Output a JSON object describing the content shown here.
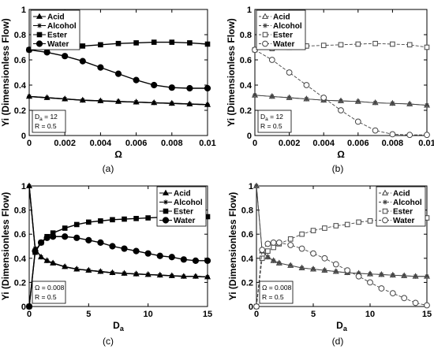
{
  "panels": [
    {
      "id": "a",
      "panel_label": "(a)",
      "chart_data": {
        "type": "line",
        "xlabel": "Ω",
        "ylabel": "Yi (Dimensionless Flow)",
        "xlim": [
          0,
          0.01
        ],
        "ylim": [
          0,
          1
        ],
        "xticks": [
          "0",
          "0.002",
          "0.004",
          "0.006",
          "0.008",
          "0.01"
        ],
        "yticks": [
          "0",
          "0.2",
          "0.4",
          "0.6",
          "0.8",
          "1"
        ],
        "legend_position": "top-left",
        "style": "filled",
        "annotation": {
          "line1": "Da = 12",
          "line2": "R = 0.5"
        },
        "series": [
          {
            "name": "Acid",
            "marker": "triangle",
            "color": "#000000",
            "x": [
              0,
              0.001,
              0.002,
              0.003,
              0.004,
              0.005,
              0.006,
              0.007,
              0.008,
              0.009,
              0.01
            ],
            "y": [
              0.31,
              0.3,
              0.29,
              0.28,
              0.275,
              0.27,
              0.265,
              0.26,
              0.255,
              0.25,
              0.245
            ]
          },
          {
            "name": "Alcohol",
            "marker": "star",
            "color": "#000000",
            "x": [
              0,
              0.001,
              0.002,
              0.003,
              0.004,
              0.005,
              0.006,
              0.007,
              0.008,
              0.009,
              0.01
            ],
            "y": [
              0.31,
              0.3,
              0.29,
              0.28,
              0.275,
              0.27,
              0.265,
              0.26,
              0.255,
              0.25,
              0.245
            ]
          },
          {
            "name": "Ester",
            "marker": "square",
            "color": "#000000",
            "x": [
              0,
              0.001,
              0.002,
              0.003,
              0.004,
              0.005,
              0.006,
              0.007,
              0.008,
              0.009,
              0.01
            ],
            "y": [
              0.68,
              0.69,
              0.7,
              0.71,
              0.72,
              0.73,
              0.735,
              0.74,
              0.74,
              0.735,
              0.725
            ]
          },
          {
            "name": "Water",
            "marker": "circle",
            "color": "#000000",
            "x": [
              0,
              0.001,
              0.002,
              0.003,
              0.004,
              0.005,
              0.006,
              0.007,
              0.008,
              0.009,
              0.01
            ],
            "y": [
              0.68,
              0.66,
              0.63,
              0.59,
              0.54,
              0.49,
              0.44,
              0.4,
              0.38,
              0.375,
              0.375
            ]
          }
        ]
      }
    },
    {
      "id": "b",
      "panel_label": "(b)",
      "chart_data": {
        "type": "line",
        "xlabel": "Ω",
        "ylabel": "Yi (Dimensionless Flow)",
        "xlim": [
          0,
          0.01
        ],
        "ylim": [
          0,
          1
        ],
        "xticks": [
          "0",
          "0.002",
          "0.004",
          "0.006",
          "0.008",
          "0.01"
        ],
        "yticks": [
          "0",
          "0.2",
          "0.4",
          "0.6",
          "0.8",
          "1"
        ],
        "legend_position": "top-left",
        "style": "open",
        "annotation": {
          "line1": "Da = 12",
          "line2": "R = 0.5"
        },
        "series": [
          {
            "name": "Acid",
            "marker": "triangle",
            "color": "#444444",
            "x": [
              0,
              0.001,
              0.002,
              0.003,
              0.004,
              0.005,
              0.006,
              0.007,
              0.008,
              0.009,
              0.01
            ],
            "y": [
              0.32,
              0.31,
              0.3,
              0.29,
              0.28,
              0.275,
              0.27,
              0.26,
              0.255,
              0.25,
              0.24
            ]
          },
          {
            "name": "Alcohol",
            "marker": "star",
            "color": "#444444",
            "x": [
              0,
              0.001,
              0.002,
              0.003,
              0.004,
              0.005,
              0.006,
              0.007,
              0.008,
              0.009,
              0.01
            ],
            "y": [
              0.32,
              0.31,
              0.3,
              0.29,
              0.28,
              0.275,
              0.27,
              0.26,
              0.255,
              0.25,
              0.24
            ]
          },
          {
            "name": "Ester",
            "marker": "square",
            "color": "#444444",
            "x": [
              0,
              0.001,
              0.002,
              0.003,
              0.004,
              0.005,
              0.006,
              0.007,
              0.008,
              0.009,
              0.01
            ],
            "y": [
              0.68,
              0.69,
              0.7,
              0.71,
              0.715,
              0.72,
              0.725,
              0.73,
              0.725,
              0.72,
              0.7
            ]
          },
          {
            "name": "Water",
            "marker": "circle",
            "color": "#444444",
            "x": [
              0,
              0.001,
              0.002,
              0.003,
              0.004,
              0.005,
              0.006,
              0.007,
              0.008,
              0.009,
              0.01
            ],
            "y": [
              0.68,
              0.6,
              0.5,
              0.4,
              0.3,
              0.2,
              0.11,
              0.04,
              0.01,
              0.005,
              0.005
            ]
          }
        ]
      }
    },
    {
      "id": "c",
      "panel_label": "(c)",
      "chart_data": {
        "type": "line",
        "xlabel": "Da",
        "ylabel": "Yi (Dimensionless Flow)",
        "xlim": [
          0,
          15
        ],
        "ylim": [
          0,
          1
        ],
        "xticks": [
          "0",
          "5",
          "10",
          "15"
        ],
        "yticks": [
          "0",
          "0.2",
          "0.4",
          "0.6",
          "0.8",
          "1"
        ],
        "legend_position": "top-right",
        "style": "filled",
        "annotation": {
          "line1": "Ω = 0.008",
          "line2": "R = 0.5"
        },
        "series": [
          {
            "name": "Acid",
            "marker": "triangle",
            "color": "#000000",
            "x": [
              0,
              0.5,
              1,
              1.5,
              2,
              3,
              4,
              5,
              6,
              7,
              8,
              9,
              10,
              11,
              12,
              13,
              14,
              15
            ],
            "y": [
              1.0,
              0.48,
              0.41,
              0.38,
              0.36,
              0.33,
              0.31,
              0.3,
              0.29,
              0.28,
              0.275,
              0.27,
              0.265,
              0.26,
              0.255,
              0.25,
              0.25,
              0.245
            ]
          },
          {
            "name": "Alcohol",
            "marker": "star",
            "color": "#000000",
            "x": [
              0,
              0.5,
              1,
              1.5,
              2,
              3,
              4,
              5,
              6,
              7,
              8,
              9,
              10,
              11,
              12,
              13,
              14,
              15
            ],
            "y": [
              1.0,
              0.48,
              0.41,
              0.38,
              0.36,
              0.33,
              0.31,
              0.3,
              0.29,
              0.28,
              0.275,
              0.27,
              0.265,
              0.26,
              0.255,
              0.25,
              0.25,
              0.245
            ]
          },
          {
            "name": "Ester",
            "marker": "square",
            "color": "#000000",
            "x": [
              0,
              0.5,
              1,
              1.5,
              2,
              3,
              4,
              5,
              6,
              7,
              8,
              9,
              10,
              11,
              12,
              13,
              14,
              15
            ],
            "y": [
              0.0,
              0.45,
              0.53,
              0.58,
              0.61,
              0.65,
              0.68,
              0.7,
              0.71,
              0.72,
              0.725,
              0.73,
              0.735,
              0.74,
              0.74,
              0.745,
              0.745,
              0.745
            ]
          },
          {
            "name": "Water",
            "marker": "circle",
            "color": "#000000",
            "x": [
              0,
              0.5,
              1,
              1.5,
              2,
              3,
              4,
              5,
              6,
              7,
              8,
              9,
              10,
              11,
              12,
              13,
              14,
              15
            ],
            "y": [
              0.0,
              0.46,
              0.53,
              0.57,
              0.58,
              0.58,
              0.57,
              0.55,
              0.53,
              0.5,
              0.48,
              0.46,
              0.44,
              0.42,
              0.41,
              0.39,
              0.38,
              0.38
            ]
          }
        ]
      }
    },
    {
      "id": "d",
      "panel_label": "(d)",
      "chart_data": {
        "type": "line",
        "xlabel": "Da",
        "ylabel": "Yi (Dimensionless Flow)",
        "xlim": [
          0,
          15
        ],
        "ylim": [
          0,
          1
        ],
        "xticks": [
          "0",
          "5",
          "10",
          "15"
        ],
        "yticks": [
          "0",
          "0.2",
          "0.4",
          "0.6",
          "0.8",
          "1"
        ],
        "legend_position": "top-right",
        "style": "open",
        "annotation": {
          "line1": "Ω = 0.008",
          "line2": "R = 0.5"
        },
        "series": [
          {
            "name": "Acid",
            "marker": "triangle",
            "color": "#444444",
            "x": [
              0,
              0.5,
              1,
              1.5,
              2,
              3,
              4,
              5,
              6,
              7,
              8,
              9,
              10,
              11,
              12,
              13,
              14,
              15
            ],
            "y": [
              1.0,
              0.46,
              0.41,
              0.38,
              0.36,
              0.34,
              0.32,
              0.31,
              0.3,
              0.29,
              0.28,
              0.275,
              0.27,
              0.265,
              0.26,
              0.255,
              0.25,
              0.25
            ]
          },
          {
            "name": "Alcohol",
            "marker": "star",
            "color": "#444444",
            "x": [
              0,
              0.5,
              1,
              1.5,
              2,
              3,
              4,
              5,
              6,
              7,
              8,
              9,
              10,
              11,
              12,
              13,
              14,
              15
            ],
            "y": [
              1.0,
              0.46,
              0.41,
              0.38,
              0.36,
              0.34,
              0.32,
              0.31,
              0.3,
              0.29,
              0.28,
              0.275,
              0.27,
              0.265,
              0.26,
              0.255,
              0.25,
              0.25
            ]
          },
          {
            "name": "Ester",
            "marker": "square",
            "color": "#444444",
            "x": [
              0,
              0.5,
              1,
              1.5,
              2,
              3,
              4,
              5,
              6,
              7,
              8,
              9,
              10,
              11,
              12,
              13,
              14,
              15
            ],
            "y": [
              0.0,
              0.4,
              0.46,
              0.49,
              0.52,
              0.56,
              0.6,
              0.63,
              0.65,
              0.67,
              0.68,
              0.7,
              0.71,
              0.72,
              0.725,
              0.73,
              0.735,
              0.735
            ]
          },
          {
            "name": "Water",
            "marker": "circle",
            "color": "#444444",
            "x": [
              0,
              0.5,
              1,
              1.5,
              2,
              3,
              4,
              5,
              6,
              7,
              8,
              9,
              10,
              11,
              12,
              13,
              14,
              15
            ],
            "y": [
              0.0,
              0.47,
              0.52,
              0.53,
              0.53,
              0.51,
              0.48,
              0.44,
              0.4,
              0.35,
              0.3,
              0.25,
              0.2,
              0.15,
              0.11,
              0.07,
              0.03,
              0.01
            ]
          }
        ]
      }
    }
  ]
}
